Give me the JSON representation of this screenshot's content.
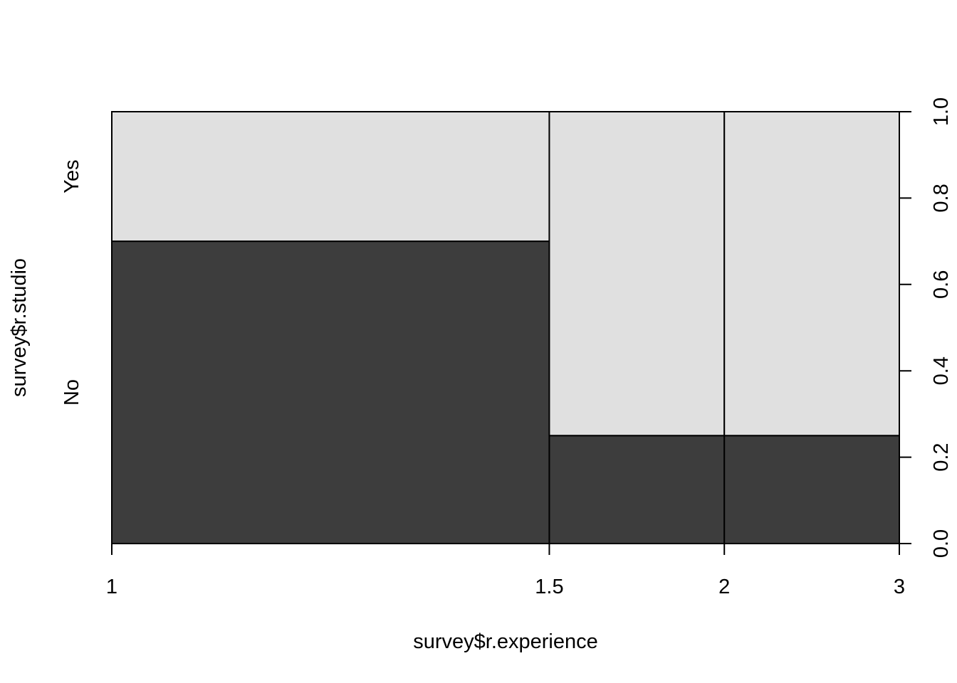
{
  "chart_data": {
    "type": "spineplot",
    "title": "",
    "xlabel": "survey$r.experience",
    "ylabel": "survey$r.studio",
    "x_breaks": [
      1,
      1.5,
      2,
      3
    ],
    "x_tick_labels": [
      "1",
      "1.5",
      "2",
      "3"
    ],
    "categories": [
      "1–1.5",
      "1.5–2",
      "2–3"
    ],
    "widths": [
      0.555,
      0.222,
      0.222
    ],
    "series": [
      {
        "name": "No",
        "values": [
          0.7,
          0.25,
          0.25
        ]
      },
      {
        "name": "Yes",
        "values": [
          0.3,
          0.75,
          0.75
        ]
      }
    ],
    "y_levels": [
      "No",
      "Yes"
    ],
    "ylim": [
      0,
      1
    ],
    "y_right_ticks": [
      "0.0",
      "0.2",
      "0.4",
      "0.6",
      "0.8",
      "1.0"
    ],
    "colors": {
      "No": "#3d3d3d",
      "Yes": "#e0e0e0",
      "border": "#000000"
    },
    "grid": false,
    "legend": "none"
  }
}
